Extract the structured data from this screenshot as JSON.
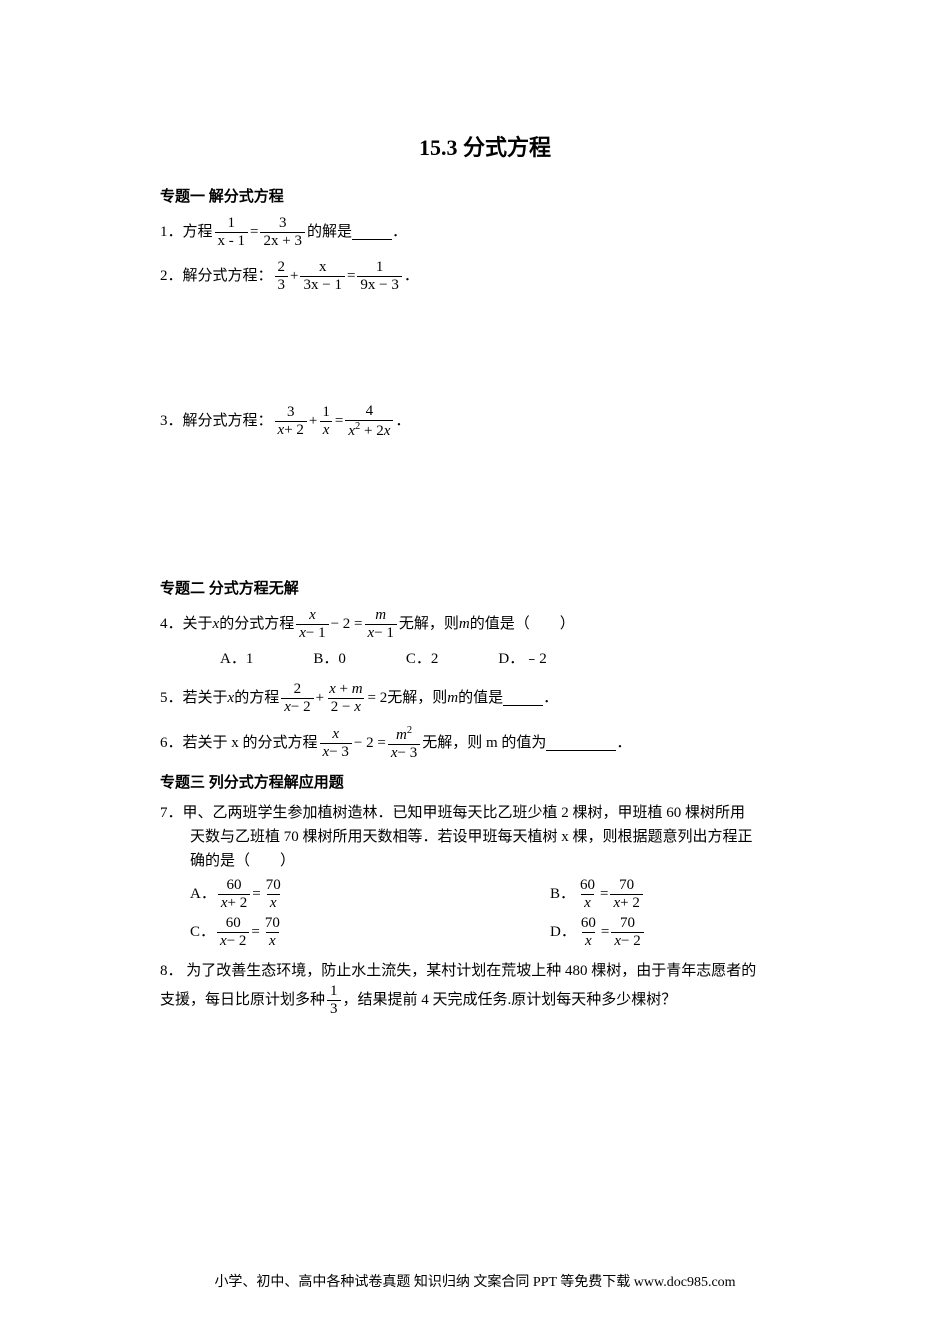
{
  "title": "15.3 分式方程",
  "section1": {
    "header": "专题一  解分式方程",
    "p1": {
      "label": "1．方程",
      "f1n": "1",
      "f1d": "x - 1",
      "eq": "=",
      "f2n": "3",
      "f2d": "2x + 3",
      "after": "的解是",
      "period": "．"
    },
    "p2": {
      "label": "2．解分式方程：",
      "f1n": "2",
      "f1d": "3",
      "plus": "+",
      "f2n": "x",
      "f2d": "3x − 1",
      "eq": "=",
      "f3n": "1",
      "f3d": "9x − 3",
      "period": "．"
    },
    "p3": {
      "label": "3．解分式方程：",
      "f1n": "3",
      "f1d_a": "x",
      "f1d_plus": "+ ",
      "f1d_b": "2",
      "plus": "+",
      "f2n": "1",
      "f2d": "x",
      "eq": "=",
      "f3n": "4",
      "f3d_a": "x",
      "f3d_exp": "2",
      "f3d_plus": " + 2",
      "f3d_b": "x",
      "period": "．"
    }
  },
  "section2": {
    "header": "专题二  分式方程无解",
    "p4": {
      "label": "4．关于",
      "var": "x",
      "mid": "的分式方程",
      "f1n": "x",
      "f1d_a": "x",
      "f1d_m": "− 1",
      "minus": "− 2 =",
      "f2n": "m",
      "f2d_a": "x",
      "f2d_m": "− 1",
      "after": "无解，则",
      "var2": "m",
      "after2": "的值是（　　）",
      "choices": [
        "A．1",
        "B．0",
        "C．2",
        "D．﹣2"
      ]
    },
    "p5": {
      "label": "5．若关于",
      "var": "x",
      "mid": "的方程",
      "f1n": "2",
      "f1d_a": "x",
      "f1d_m": "− 2",
      "plus": "+",
      "f2n_a": "x",
      "f2n_plus": " + ",
      "f2n_b": "m",
      "f2d_a": "2 − ",
      "f2d_b": "x",
      "eq": "= 2",
      "after": "无解，则",
      "var2": "m",
      "after2": "的值是",
      "period": "．"
    },
    "p6": {
      "label": "6．若关于 x 的分式方程",
      "f1n": "x",
      "f1d_a": "x",
      "f1d_m": "− 3",
      "minus": "− 2 =",
      "f2n_a": "m",
      "f2n_exp": "2",
      "f2d_a": "x",
      "f2d_m": "− 3",
      "after": " 无解，则 m 的值为",
      "period": "．"
    }
  },
  "section3": {
    "header": "专题三  列分式方程解应用题",
    "p7": {
      "label": "7．",
      "text1": "甲、乙两班学生参加植树造林．已知甲班每天比乙班少植 2 棵树，甲班植 60 棵树所用",
      "text2": "天数与乙班植 70 棵树所用天数相等．若设甲班每天植树 x 棵，则根据题意列出方程正",
      "text3": "确的是（　　）",
      "cA": "A．",
      "cAf1n": "60",
      "cAf1d_a": "x",
      "cAf1d_p": "+ 2",
      "cAe": "=",
      "cAf2n": "70",
      "cAf2d": "x",
      "cB": "B．",
      "cBf1n": "60",
      "cBf1d": "x",
      "cBe": "=",
      "cBf2n": "70",
      "cBf2d_a": "x",
      "cBf2d_p": "+ 2",
      "cC": "C．",
      "cCf1n": "60",
      "cCf1d_a": "x",
      "cCf1d_m": "− 2",
      "cCe": "=",
      "cCf2n": "70",
      "cCf2d": "x",
      "cD": "D．",
      "cDf1n": "60",
      "cDf1d": "x",
      "cDe": "=",
      "cDf2n": "70",
      "cDf2d_a": "x",
      "cDf2d_m": "− 2"
    },
    "p8": {
      "label": "8． ",
      "text1": "为了改善生态环境，防止水土流失，某村计划在荒坡上种 480 棵树，由于青年志愿者的",
      "text2a": "支援，每日比原计划多种",
      "f1n": "1",
      "f1d": "3",
      "text2b": "，结果提前 4 天完成任务.原计划每天种多少棵树？"
    }
  },
  "footer": "小学、初中、高中各种试卷真题 知识归纳 文案合同 PPT 等免费下载 www.doc985.com"
}
